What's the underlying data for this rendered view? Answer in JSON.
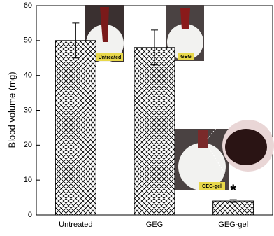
{
  "chart_data": {
    "type": "bar",
    "y_label": "Blood volume (mg)",
    "categories": [
      "Untreated",
      "GEG",
      "GEG-gel"
    ],
    "values": [
      50,
      48,
      4
    ],
    "errors": [
      5,
      5,
      0.4
    ],
    "ylim": [
      0,
      60
    ],
    "yticks": [
      0,
      10,
      20,
      30,
      40,
      50,
      60
    ],
    "hatch": "crosshatch",
    "color": "#000000",
    "annotations": [
      {
        "text": "*",
        "category": 2
      }
    ],
    "photo_labels": [
      "Untreated",
      "GEG",
      "GEG-gel"
    ]
  }
}
